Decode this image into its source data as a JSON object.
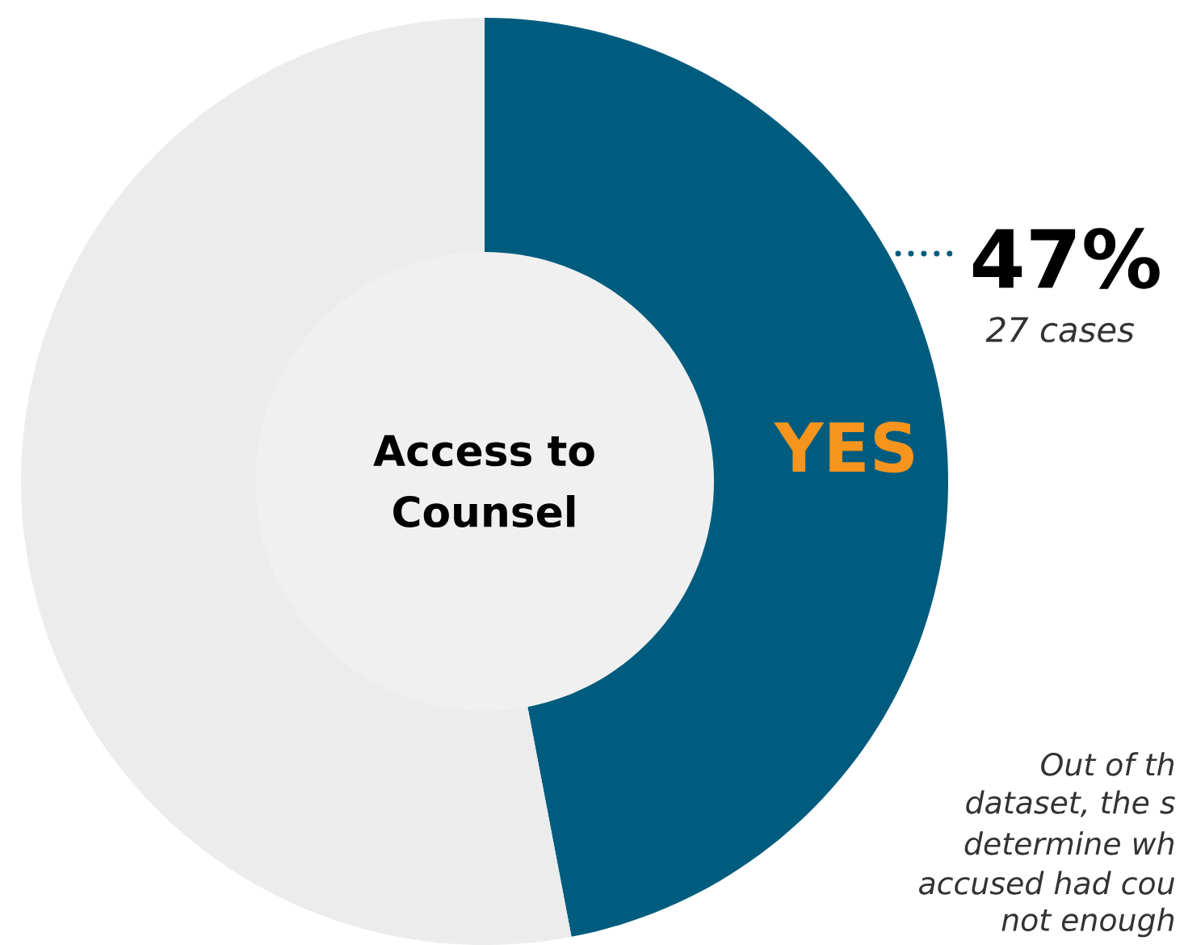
{
  "chart_data": {
    "type": "donut",
    "title": "Access to Counsel",
    "categories": [
      "YES",
      null
    ],
    "values": [
      47,
      53
    ],
    "colors": [
      "#005c7e",
      "#ececec"
    ],
    "value_labels": [
      "47%",
      null
    ],
    "annotations": [
      "27 cases",
      "Out of th",
      "dataset, the s",
      "determine wh",
      "accused had cou",
      "not enough"
    ]
  }
}
